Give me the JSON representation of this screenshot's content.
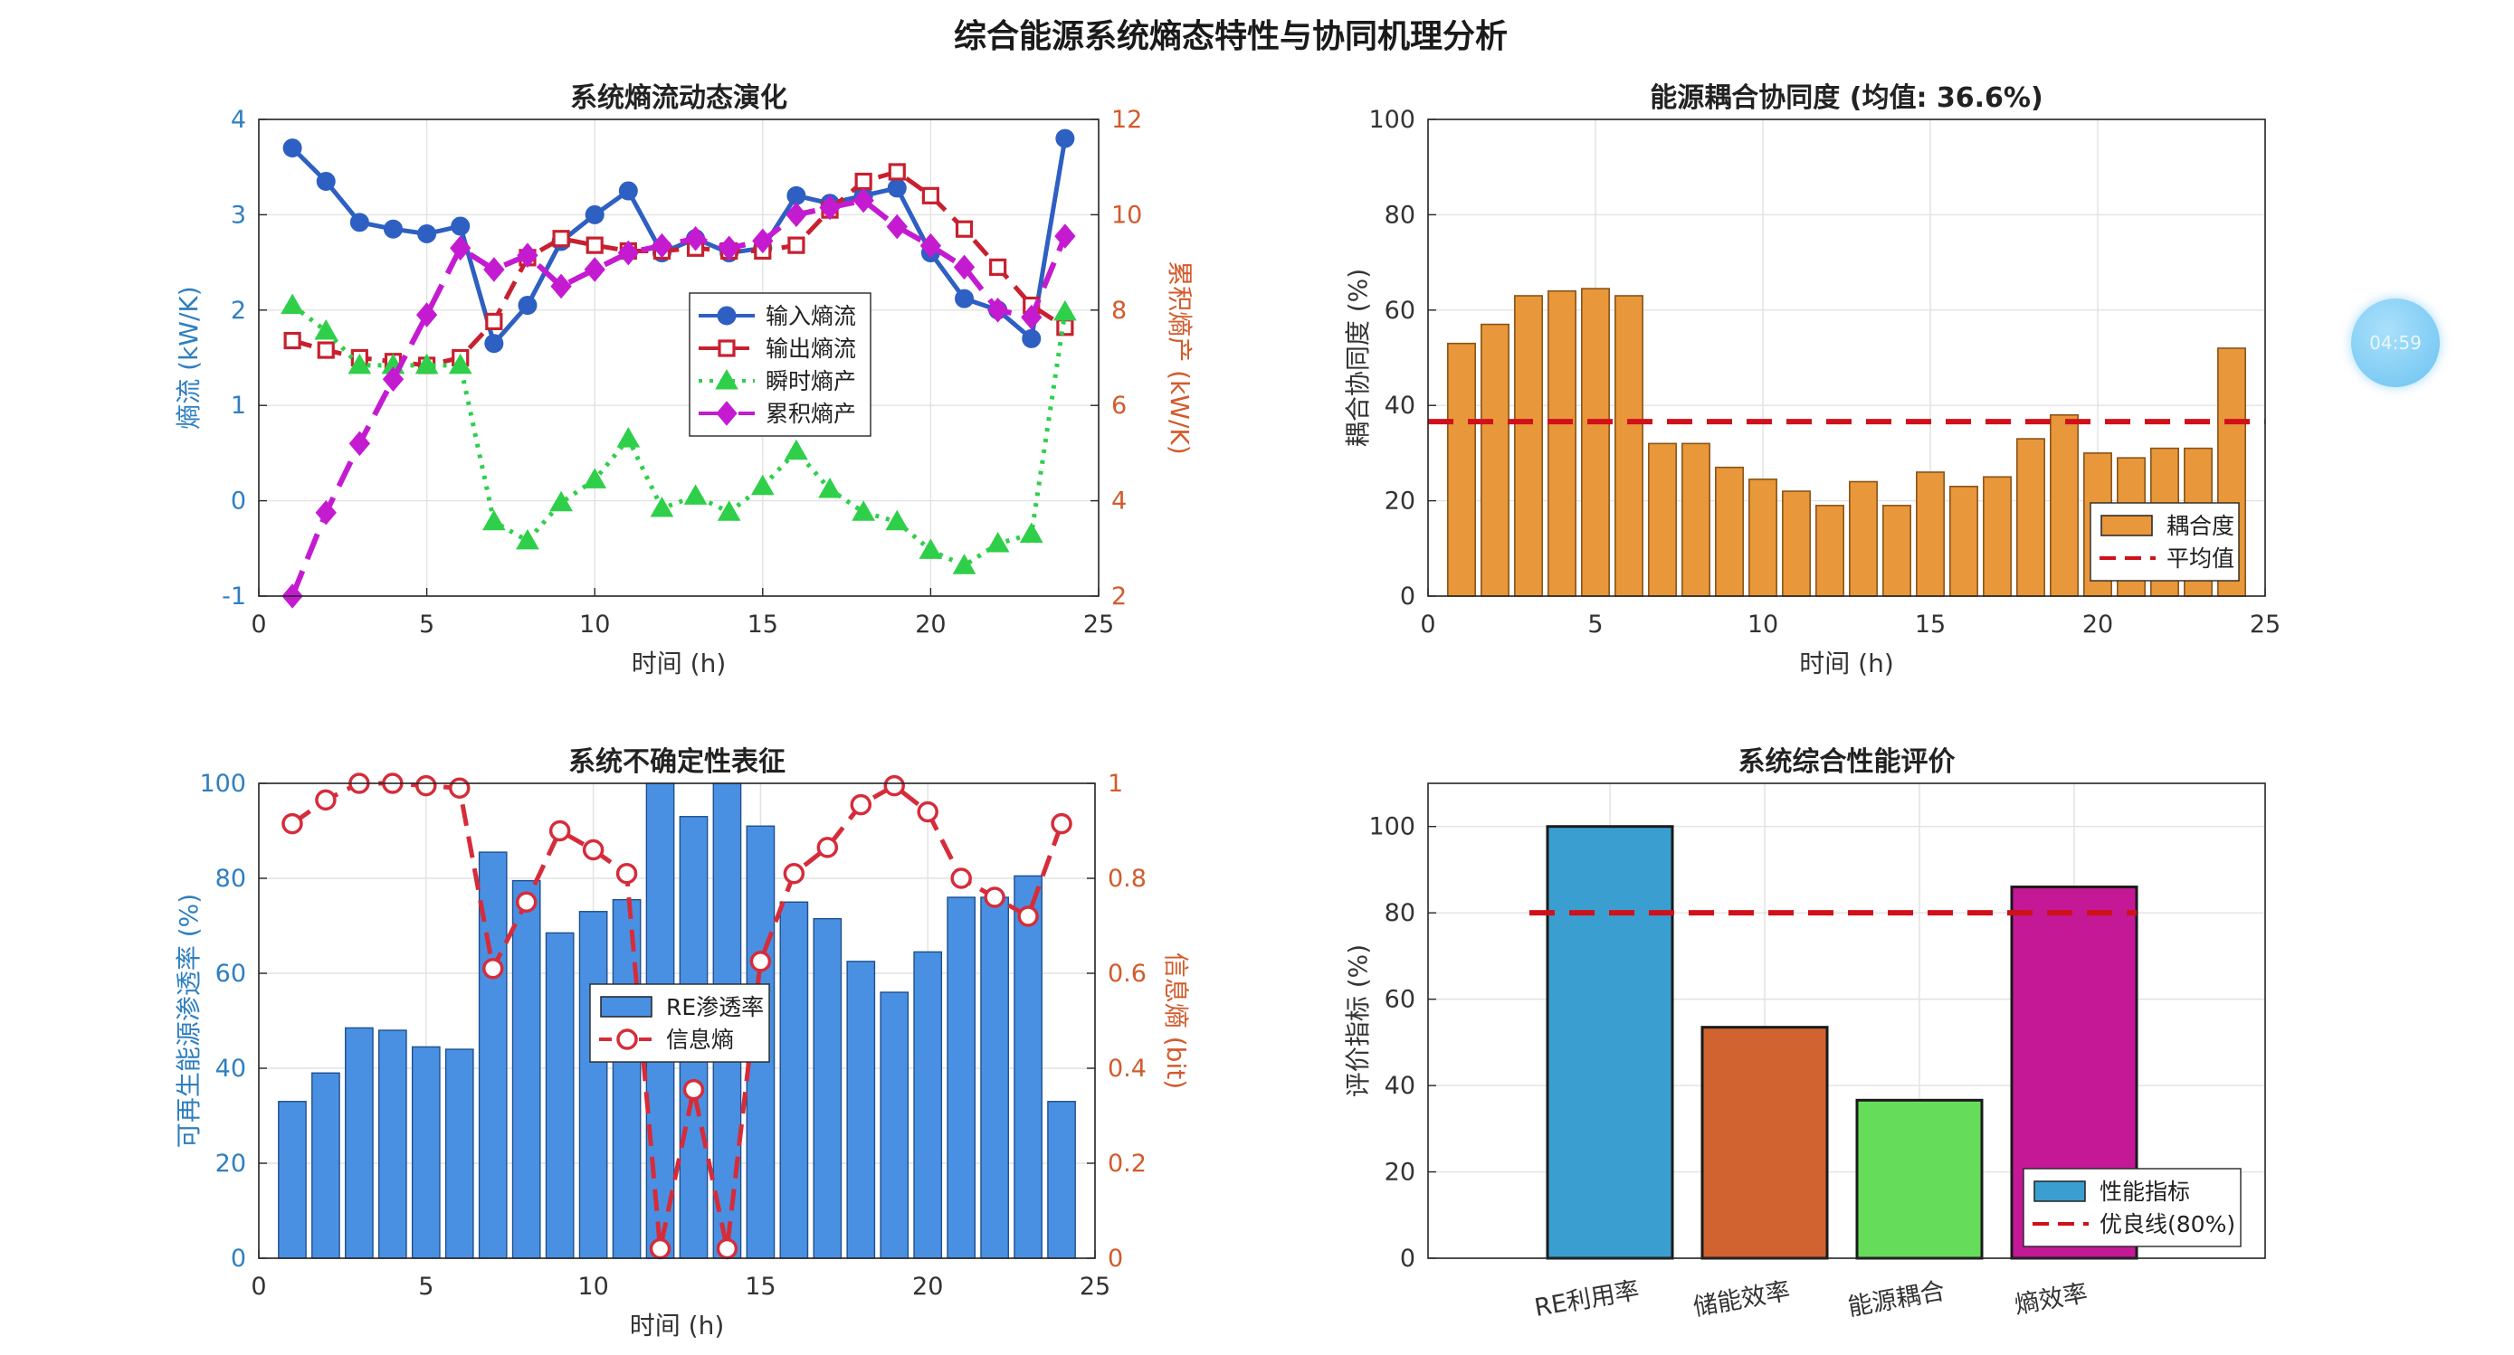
{
  "figure_title": "综合能源系统熵态特性与协同机理分析",
  "timer_badge": "04:59",
  "chart_data": [
    {
      "type": "line",
      "title": "系统熵流动态演化",
      "xlabel": "时间 (h)",
      "ylabel_left": "熵流 (kW/K)",
      "ylabel_right": "累积熵产 (kW/K)",
      "xlim": [
        0,
        25
      ],
      "ylim_left": [
        -1,
        4
      ],
      "ylim_right": [
        2,
        12
      ],
      "xticks": [
        0,
        5,
        10,
        15,
        20,
        25
      ],
      "yticks_left": [
        -1,
        0,
        1,
        2,
        3,
        4
      ],
      "yticks_right": [
        2,
        4,
        6,
        8,
        10,
        12
      ],
      "x": [
        1,
        2,
        3,
        4,
        5,
        6,
        7,
        8,
        9,
        10,
        11,
        12,
        13,
        14,
        15,
        16,
        17,
        18,
        19,
        20,
        21,
        22,
        23,
        24
      ],
      "series": [
        {
          "name": "输入熵流",
          "axis": "left",
          "color": "#2e5fc2",
          "values": [
            3.7,
            3.35,
            2.92,
            2.85,
            2.8,
            2.88,
            1.65,
            2.05,
            2.72,
            3.0,
            3.25,
            2.6,
            2.75,
            2.6,
            2.65,
            3.2,
            3.12,
            3.2,
            3.28,
            2.6,
            2.12,
            2.0,
            1.7,
            3.8
          ]
        },
        {
          "name": "输出熵流",
          "axis": "left",
          "color": "#c8202f",
          "values": [
            1.68,
            1.58,
            1.5,
            1.46,
            1.42,
            1.5,
            1.88,
            2.55,
            2.75,
            2.68,
            2.62,
            2.62,
            2.65,
            2.62,
            2.62,
            2.68,
            3.05,
            3.35,
            3.45,
            3.2,
            2.85,
            2.45,
            2.05,
            1.82
          ]
        },
        {
          "name": "瞬时熵产",
          "axis": "left",
          "color": "#2fcf4a",
          "values": [
            2.05,
            1.78,
            1.42,
            1.42,
            1.42,
            1.42,
            -0.22,
            -0.42,
            -0.02,
            0.22,
            0.65,
            -0.08,
            0.05,
            -0.12,
            0.15,
            0.52,
            0.12,
            -0.12,
            -0.22,
            -0.52,
            -0.68,
            -0.45,
            -0.35,
            1.98
          ]
        },
        {
          "name": "累积熵产",
          "axis": "right",
          "color": "#c41bd1",
          "values": [
            2.0,
            3.75,
            5.2,
            6.55,
            7.9,
            9.3,
            8.85,
            9.15,
            8.5,
            8.85,
            9.2,
            9.35,
            9.5,
            9.3,
            9.45,
            10.0,
            10.15,
            10.3,
            9.75,
            9.35,
            8.9,
            8.0,
            7.85,
            9.55
          ]
        }
      ],
      "legend": "center-right"
    },
    {
      "type": "bar",
      "title": "能源耦合协同度 (均值: 36.6%)",
      "xlabel": "时间 (h)",
      "ylabel": "耦合协同度 (%)",
      "xlim": [
        0,
        25
      ],
      "ylim": [
        0,
        100
      ],
      "xticks": [
        0,
        5,
        10,
        15,
        20,
        25
      ],
      "yticks": [
        0,
        20,
        40,
        60,
        80,
        100
      ],
      "x": [
        1,
        2,
        3,
        4,
        5,
        6,
        7,
        8,
        9,
        10,
        11,
        12,
        13,
        14,
        15,
        16,
        17,
        18,
        19,
        20,
        21,
        22,
        23,
        24
      ],
      "values": [
        53,
        57,
        63,
        64,
        64.5,
        63,
        32,
        32,
        27,
        24.5,
        22,
        19,
        24,
        19,
        26,
        23,
        25,
        33,
        38,
        30,
        29,
        31,
        31,
        52
      ],
      "bar_label": "耦合度",
      "bar_color": "#e8973a",
      "mean": 36.6,
      "mean_label": "平均值",
      "legend": "bottom-right"
    },
    {
      "type": "bar",
      "title": "系统不确定性表征",
      "xlabel": "时间 (h)",
      "ylabel_left": "可再生能源渗透率 (%)",
      "ylabel_right": "信息熵 (bit)",
      "xlim": [
        0,
        25
      ],
      "ylim_left": [
        0,
        100
      ],
      "ylim_right": [
        0,
        1
      ],
      "xticks": [
        0,
        5,
        10,
        15,
        20,
        25
      ],
      "yticks_left": [
        0,
        20,
        40,
        60,
        80,
        100
      ],
      "yticks_right": [
        0,
        0.2,
        0.4,
        0.6,
        0.8,
        1
      ],
      "x": [
        1,
        2,
        3,
        4,
        5,
        6,
        7,
        8,
        9,
        10,
        11,
        12,
        13,
        14,
        15,
        16,
        17,
        18,
        19,
        20,
        21,
        22,
        23,
        24
      ],
      "series": [
        {
          "name": "RE渗透率",
          "axis": "left",
          "kind": "bar",
          "color": "#4a90e2",
          "values": [
            33,
            39,
            48.5,
            48,
            44.5,
            44,
            85.5,
            79.5,
            68.5,
            73,
            75.5,
            100,
            93,
            100,
            91,
            75,
            71.5,
            62.5,
            56,
            64.5,
            76,
            76,
            80.5,
            33
          ]
        },
        {
          "name": "信息熵",
          "axis": "right",
          "kind": "line",
          "color": "#d62c3a",
          "values": [
            0.915,
            0.965,
            1.0,
            1.0,
            0.995,
            0.99,
            0.61,
            0.75,
            0.9,
            0.86,
            0.81,
            0.02,
            0.355,
            0.02,
            0.625,
            0.81,
            0.865,
            0.955,
            0.995,
            0.94,
            0.8,
            0.76,
            0.72,
            0.915
          ]
        }
      ],
      "legend": "center"
    },
    {
      "type": "bar",
      "title": "系统综合性能评价",
      "xlabel": "",
      "ylabel": "评价指标 (%)",
      "ylim": [
        0,
        110
      ],
      "yticks": [
        0,
        20,
        40,
        60,
        80,
        100
      ],
      "categories": [
        "RE利用率",
        "储能效率",
        "能源耦合",
        "熵效率"
      ],
      "values": [
        100,
        53.5,
        36.6,
        86
      ],
      "colors": [
        "#3a9fd0",
        "#d0632f",
        "#66dd5a",
        "#c41896"
      ],
      "bar_label": "性能指标",
      "threshold": 80,
      "threshold_label": "优良线(80%)",
      "legend": "bottom-right"
    }
  ]
}
